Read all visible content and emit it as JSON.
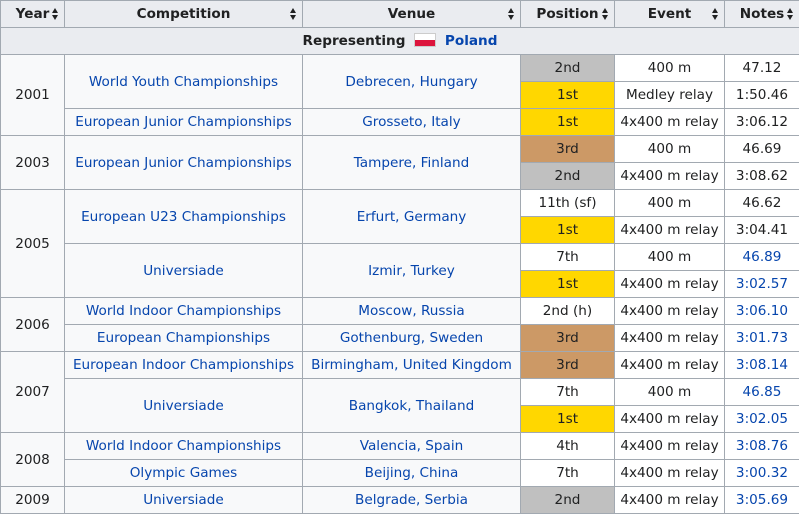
{
  "headers": {
    "year": "Year",
    "competition": "Competition",
    "venue": "Venue",
    "position": "Position",
    "event": "Event",
    "notes": "Notes"
  },
  "representing": {
    "label": "Representing",
    "country": "Poland",
    "flag_icon": "poland-flag-icon"
  },
  "colors": {
    "gold": "#ffd700",
    "silver": "#c0c0c0",
    "bronze": "#cc9966",
    "link": "#0645ad",
    "header_bg": "#eaecf0"
  },
  "rows": [
    {
      "year": "2001",
      "competition": "World Youth Championships",
      "venue": "Debrecen, Hungary",
      "position": "2nd",
      "event": "400 m",
      "notes": "47.12"
    },
    {
      "position": "1st",
      "event": "Medley relay",
      "notes": "1:50.46"
    },
    {
      "competition": "European Junior Championships",
      "venue": "Grosseto, Italy",
      "position": "1st",
      "event": "4x400 m relay",
      "notes": "3:06.12"
    },
    {
      "year": "2003",
      "competition": "European Junior Championships",
      "venue": "Tampere, Finland",
      "position": "3rd",
      "event": "400 m",
      "notes": "46.69"
    },
    {
      "position": "2nd",
      "event": "4x400 m relay",
      "notes": "3:08.62"
    },
    {
      "year": "2005",
      "competition": "European U23 Championships",
      "venue": "Erfurt, Germany",
      "position": "11th (sf)",
      "event": "400 m",
      "notes": "46.62"
    },
    {
      "position": "1st",
      "event": "4x400 m relay",
      "notes": "3:04.41"
    },
    {
      "competition": "Universiade",
      "venue": "Izmir, Turkey",
      "position": "7th",
      "event": "400 m",
      "notes": "46.89"
    },
    {
      "position": "1st",
      "event": "4x400 m relay",
      "notes": "3:02.57"
    },
    {
      "year": "2006",
      "competition": "World Indoor Championships",
      "venue": "Moscow, Russia",
      "position": "2nd (h)",
      "event": "4x400 m relay",
      "notes": "3:06.10"
    },
    {
      "competition": "European Championships",
      "venue": "Gothenburg, Sweden",
      "position": "3rd",
      "event": "4x400 m relay",
      "notes": "3:01.73"
    },
    {
      "year": "2007",
      "competition": "European Indoor Championships",
      "venue": "Birmingham, United Kingdom",
      "position": "3rd",
      "event": "4x400 m relay",
      "notes": "3:08.14"
    },
    {
      "competition": "Universiade",
      "venue": "Bangkok, Thailand",
      "position": "7th",
      "event": "400 m",
      "notes": "46.85"
    },
    {
      "position": "1st",
      "event": "4x400 m relay",
      "notes": "3:02.05"
    },
    {
      "year": "2008",
      "competition": "World Indoor Championships",
      "venue": "Valencia, Spain",
      "position": "4th",
      "event": "4x400 m relay",
      "notes": "3:08.76"
    },
    {
      "competition": "Olympic Games",
      "venue": "Beijing, China",
      "position": "7th",
      "event": "4x400 m relay",
      "notes": "3:00.32"
    },
    {
      "year": "2009",
      "competition": "Universiade",
      "venue": "Belgrade, Serbia",
      "position": "2nd",
      "event": "4x400 m relay",
      "notes": "3:05.69"
    }
  ]
}
